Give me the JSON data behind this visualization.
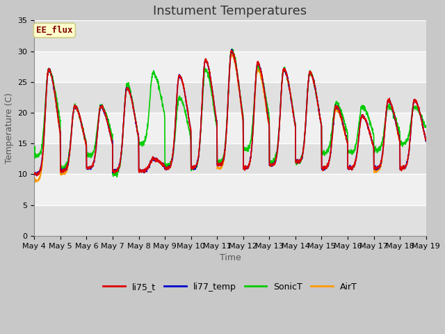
{
  "title": "Instument Temperatures",
  "xlabel": "Time",
  "ylabel": "Temperature (C)",
  "ylim": [
    0,
    35
  ],
  "yticks": [
    0,
    5,
    10,
    15,
    20,
    25,
    30,
    35
  ],
  "x_labels": [
    "May 4",
    "May 5",
    "May 6",
    "May 7",
    "May 8",
    "May 9",
    "May 10",
    "May 11",
    "May 12",
    "May 13",
    "May 14",
    "May 15",
    "May 16",
    "May 17",
    "May 18",
    "May 19"
  ],
  "annotation_text": "EE_flux",
  "annotation_color": "#800000",
  "annotation_bg": "#ffffcc",
  "annotation_border": "#cccc88",
  "line_colors": {
    "li75_t": "#dd0000",
    "li77_temp": "#0000cc",
    "SonicT": "#00cc00",
    "AirT": "#ff9900"
  },
  "fig_bg": "#c8c8c8",
  "plot_bg_light": "#f0f0f0",
  "plot_bg_dark": "#e0e0e0",
  "grid_color": "#ffffff",
  "title_fontsize": 13,
  "axis_fontsize": 9,
  "tick_fontsize": 8,
  "legend_fontsize": 9
}
